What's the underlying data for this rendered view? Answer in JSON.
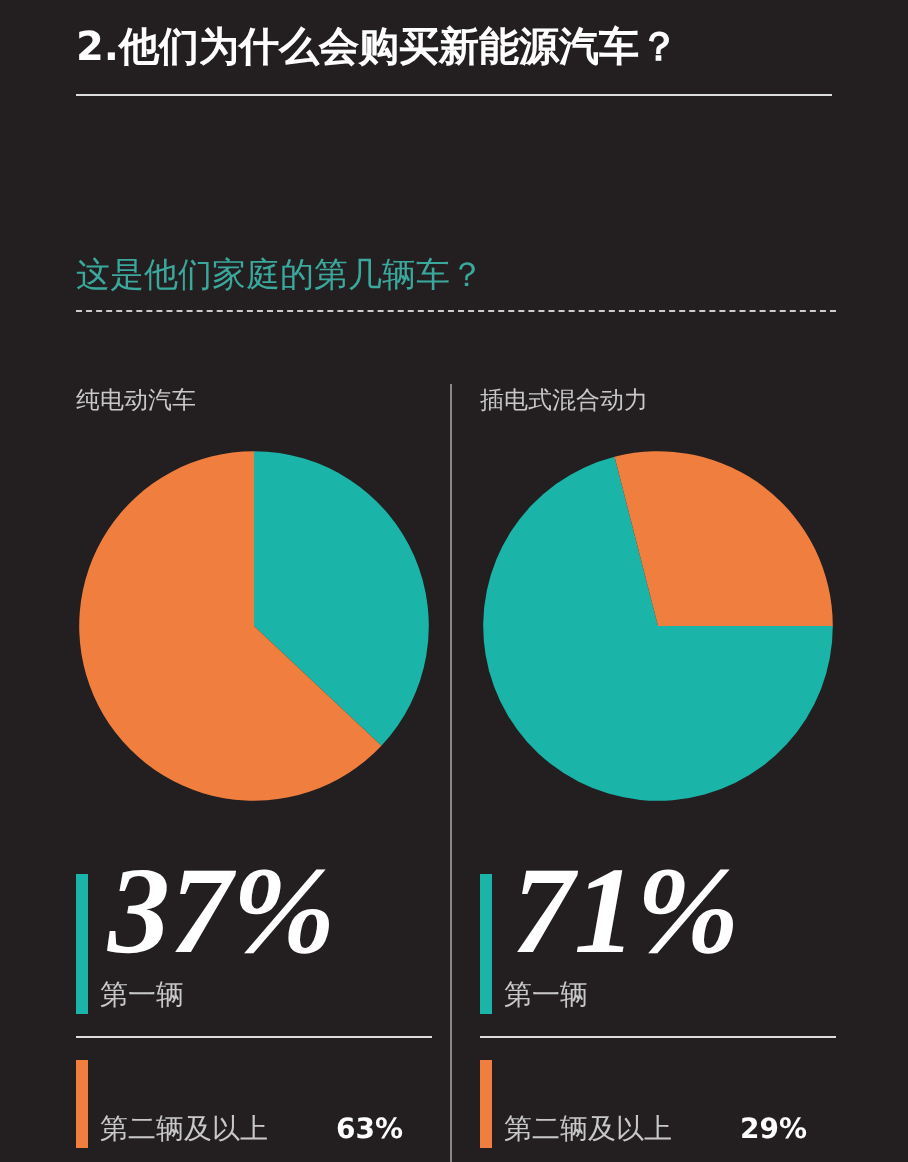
{
  "chart_data": [
    {
      "type": "pie",
      "title": "纯电动汽车",
      "annotations": [
        "2.他们为什么会购买新能源汽车？",
        "这是他们家庭的第几辆车？"
      ],
      "categories": [
        "第一辆",
        "第二辆及以上"
      ],
      "values": [
        37,
        63
      ],
      "value_labels": [
        "37%",
        "63%"
      ],
      "colors": [
        "#1ab5a8",
        "#f07f3f"
      ],
      "legend": "bottom"
    },
    {
      "type": "pie",
      "title": "插电式混合动力",
      "categories": [
        "第一辆",
        "第二辆及以上"
      ],
      "values": [
        71,
        29
      ],
      "value_labels": [
        "71%",
        "29%"
      ],
      "colors": [
        "#1ab5a8",
        "#f07f3f"
      ],
      "legend": "bottom"
    }
  ]
}
